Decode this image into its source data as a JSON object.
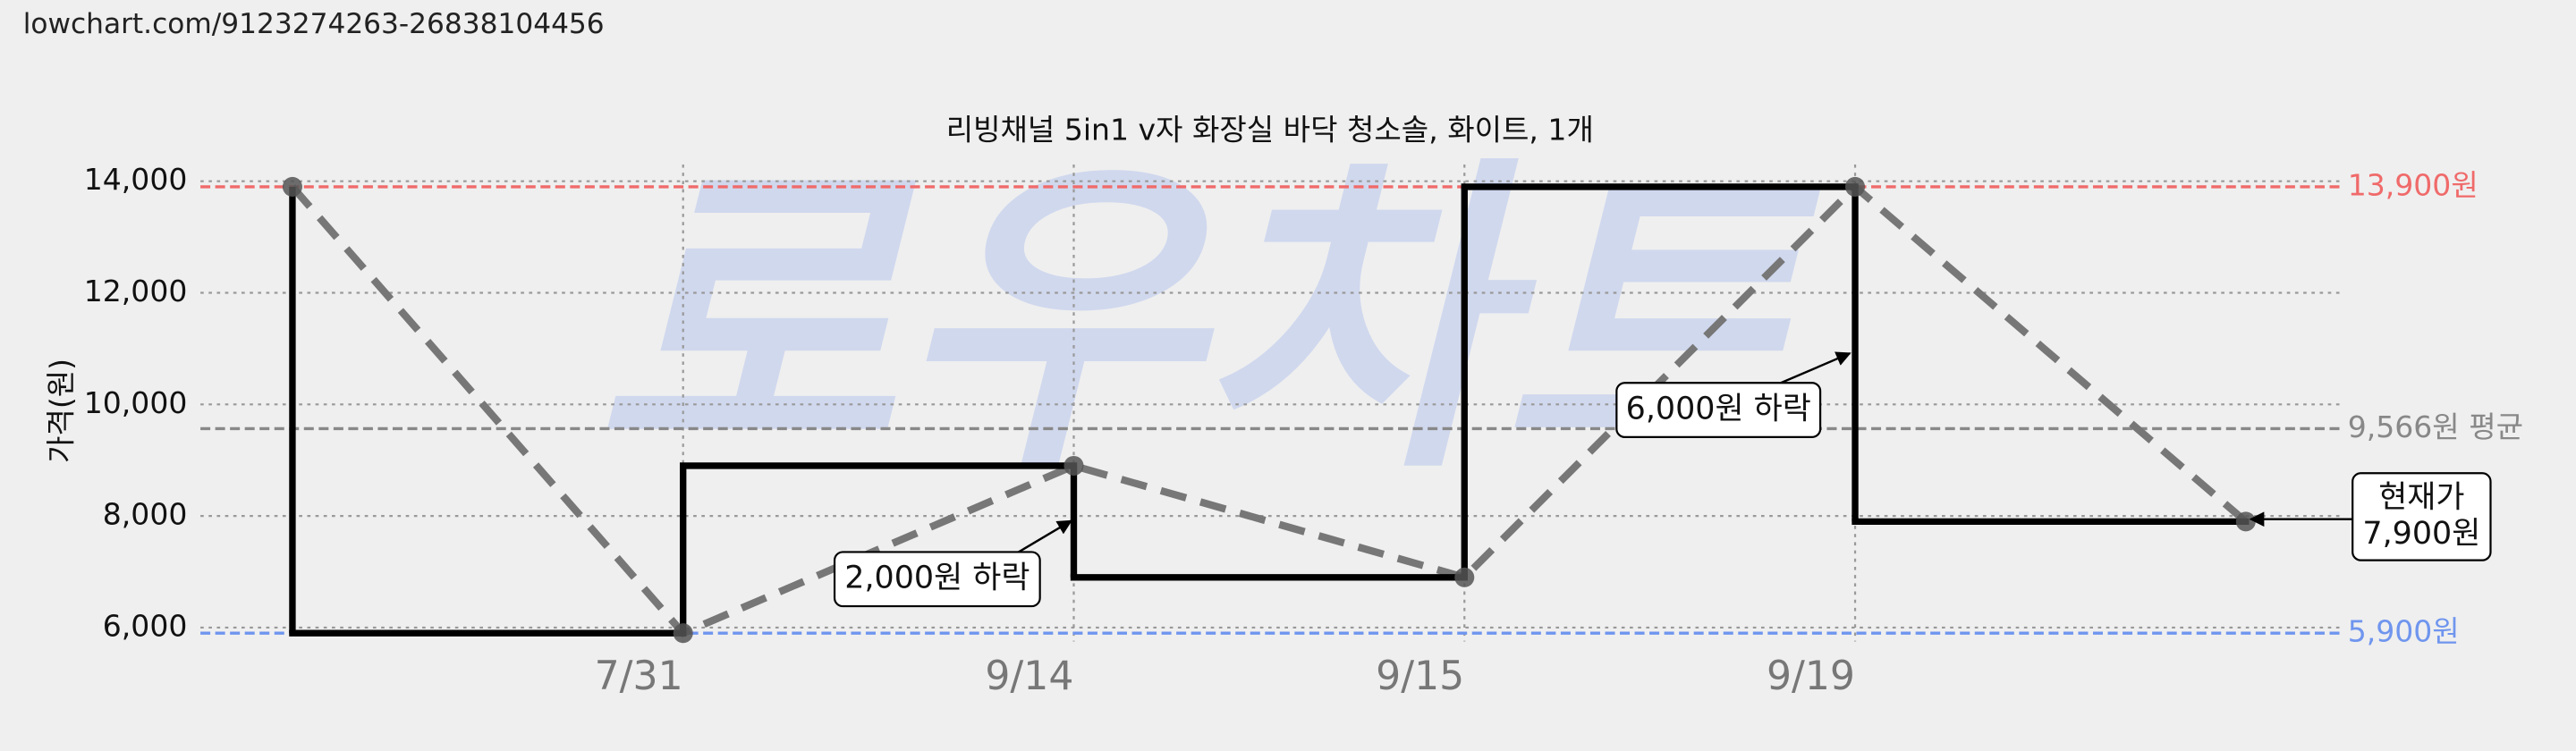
{
  "url": "lowchart.com/9123274263-26838104456",
  "chart_data": {
    "type": "step-line",
    "title": "리빙채널 5in1 v자 화장실 바닥 청소솔, 화이트, 1개",
    "y_label": "가격(원)",
    "watermark": "로우차트",
    "categories": [
      null,
      "7/31",
      "9/14",
      "9/15",
      "9/19",
      null
    ],
    "series": [
      {
        "name": "가격",
        "color": "#000000",
        "values": [
          13900,
          5900,
          8900,
          6900,
          13900,
          7900
        ]
      }
    ],
    "ylim": [
      5750,
      14300
    ],
    "yticks": [
      {
        "value": 6000,
        "label": "6,000"
      },
      {
        "value": 8000,
        "label": "8,000"
      },
      {
        "value": 10000,
        "label": "10,000"
      },
      {
        "value": 12000,
        "label": "12,000"
      },
      {
        "value": 14000,
        "label": "14,000"
      }
    ],
    "grid": true,
    "reference_lines": [
      {
        "value": 13900,
        "label": "13,900원",
        "color": "#f06a6a"
      },
      {
        "value": 9566,
        "label": "9,566원 평균",
        "color": "#888888"
      },
      {
        "value": 5900,
        "label": "5,900원",
        "color": "#6f95ee"
      }
    ],
    "annotations": [
      {
        "lines": [
          "2,000원 하락"
        ]
      },
      {
        "lines": [
          "6,000원 하락"
        ]
      },
      {
        "lines": [
          "현재가",
          "7,900원"
        ]
      }
    ]
  }
}
